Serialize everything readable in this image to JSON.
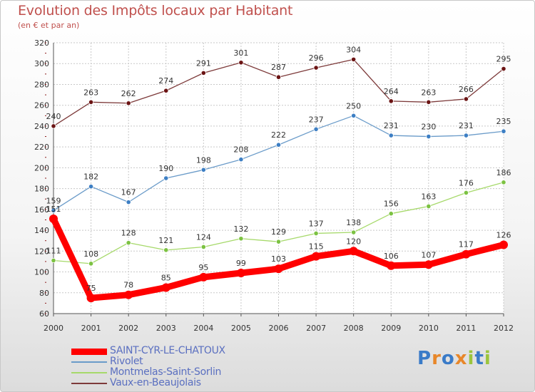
{
  "title": "Evolution des Impôts locaux par Habitant",
  "subtitle": "(en € et par an)",
  "logo_text": "Proxiti",
  "chart_data": {
    "type": "line",
    "title": "Evolution des Impôts locaux par Habitant",
    "subtitle": "(en € et par an)",
    "x": [
      "2000",
      "2001",
      "2002",
      "2003",
      "2004",
      "2005",
      "2006",
      "2007",
      "2008",
      "2009",
      "2010",
      "2011",
      "2012"
    ],
    "ylim": [
      60,
      320
    ],
    "yticks": [
      60,
      80,
      100,
      120,
      140,
      160,
      180,
      200,
      220,
      240,
      260,
      280,
      300,
      320
    ],
    "grid": true,
    "legend_position": "bottom-left",
    "series": [
      {
        "name": "SAINT-CYR-LE-CHATOUX",
        "color": "#ff0000",
        "values": [
          151,
          75,
          78,
          85,
          95,
          99,
          103,
          115,
          120,
          106,
          107,
          117,
          126
        ]
      },
      {
        "name": "Rivolet",
        "color": "#6a9bc9",
        "point_color": "#3d7fc4",
        "values": [
          159,
          182,
          167,
          190,
          198,
          208,
          222,
          237,
          250,
          231,
          230,
          231,
          235
        ]
      },
      {
        "name": "Montmelas-Saint-Sorlin",
        "color": "#a6d96a",
        "point_color": "#7cc242",
        "values": [
          111,
          108,
          128,
          121,
          124,
          132,
          129,
          137,
          138,
          156,
          163,
          176,
          186
        ]
      },
      {
        "name": "Vaux-en-Beaujolais",
        "color": "#7d3a3a",
        "point_color": "#6b1414",
        "values": [
          240,
          263,
          262,
          274,
          291,
          301,
          287,
          296,
          304,
          264,
          263,
          266,
          295
        ]
      }
    ]
  }
}
